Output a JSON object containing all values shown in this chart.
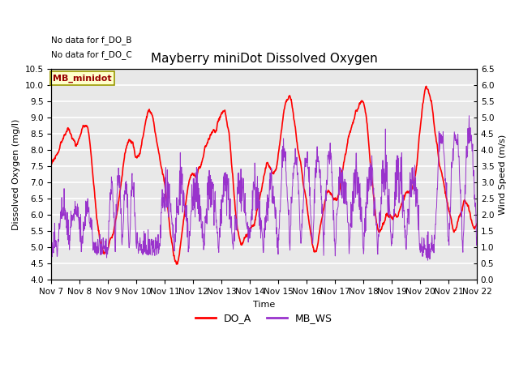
{
  "title": "Mayberry miniDot Dissolved Oxygen",
  "xlabel": "Time",
  "ylabel_left": "Dissolved Oxygen (mg/l)",
  "ylabel_right": "Wind Speed (m/s)",
  "text_no_data": [
    "No data for f_DO_B",
    "No data for f_DO_C"
  ],
  "legend_box_label": "MB_minidot",
  "legend_entries": [
    "DO_A",
    "MB_WS"
  ],
  "do_color": "red",
  "ws_color": "#9933cc",
  "ylim_left": [
    4.0,
    10.5
  ],
  "ylim_right": [
    0.0,
    6.5
  ],
  "yticks_left": [
    4.0,
    4.5,
    5.0,
    5.5,
    6.0,
    6.5,
    7.0,
    7.5,
    8.0,
    8.5,
    9.0,
    9.5,
    10.0,
    10.5
  ],
  "yticks_right": [
    0.0,
    0.5,
    1.0,
    1.5,
    2.0,
    2.5,
    3.0,
    3.5,
    4.0,
    4.5,
    5.0,
    5.5,
    6.0,
    6.5
  ],
  "xtick_labels": [
    "Nov 7",
    "Nov 8",
    "Nov 9",
    "Nov 10",
    "Nov 11",
    "Nov 12",
    "Nov 13",
    "Nov 14",
    "Nov 15",
    "Nov 16",
    "Nov 17",
    "Nov 18",
    "Nov 19",
    "Nov 20",
    "Nov 21",
    "Nov 22"
  ],
  "background_color": "#e8e8e8",
  "grid_color": "white",
  "figsize": [
    6.4,
    4.8
  ],
  "dpi": 100,
  "do_linewidth": 1.2,
  "ws_linewidth": 0.7,
  "title_fontsize": 11,
  "label_fontsize": 8,
  "tick_fontsize": 7.5,
  "legend_fontsize": 9
}
